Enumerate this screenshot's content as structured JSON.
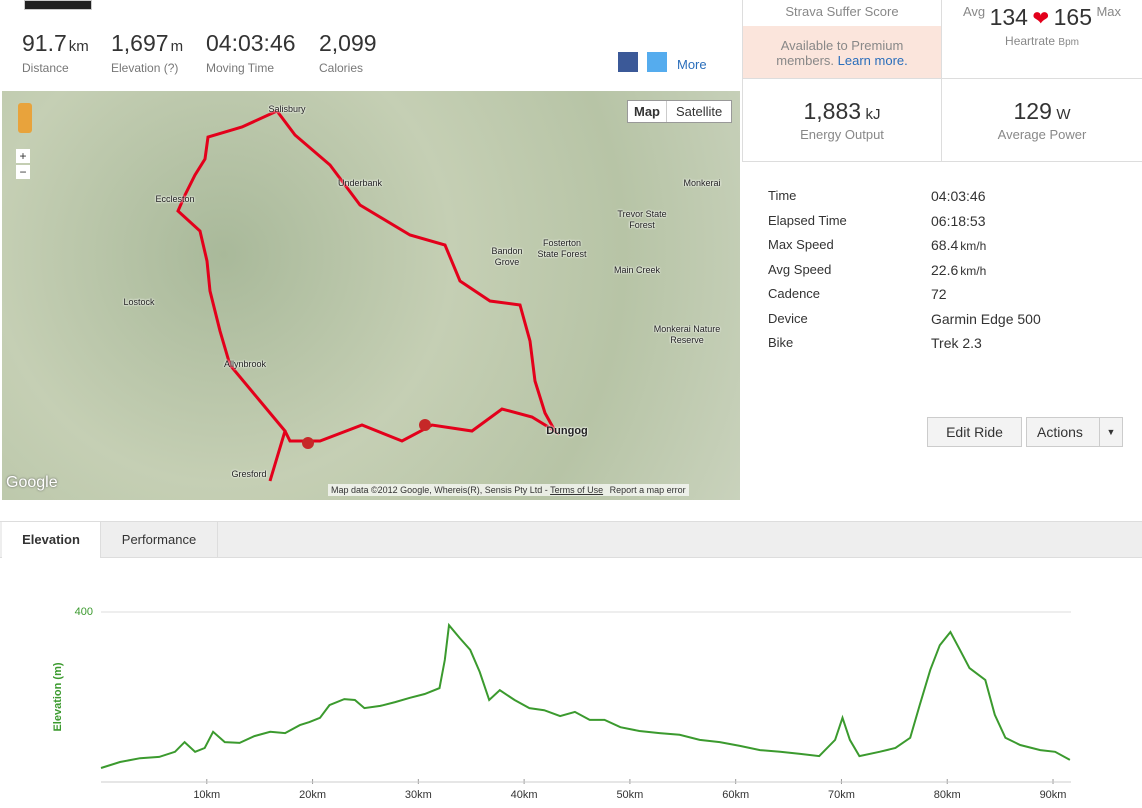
{
  "stats": [
    {
      "value": "91.7",
      "unit": "km",
      "label": "Distance"
    },
    {
      "value": "1,697",
      "unit": "m",
      "label": "Elevation (?)"
    },
    {
      "value": "04:03:46",
      "label": "Moving Time"
    },
    {
      "value": "2,099",
      "label": "Calories"
    }
  ],
  "share": {
    "more": "More"
  },
  "map": {
    "buttons": [
      "Map",
      "Satellite"
    ],
    "places": [
      "Salisbury",
      "Underbank",
      "Eccleston",
      "Lostock",
      "Allynbrook",
      "Gresford",
      "Dungog",
      "Bandon Grove",
      "Fosterton State Forest",
      "Trevor State Forest",
      "Monkerai",
      "Main Creek",
      "Monkerai Nature Reserve"
    ],
    "attribution": "Map data ©2012 Google, Whereis(R), Sensis Pty Ltd -",
    "terms": "Terms of Use",
    "report": "Report a map error",
    "logo": "Google"
  },
  "suffer": {
    "title": "Strava Suffer Score",
    "text": "Available to Premium members.",
    "link": "Learn more."
  },
  "heartrate": {
    "avg_label": "Avg",
    "avg": "134",
    "max": "165",
    "max_label": "Max",
    "label": "Heartrate",
    "unit": "Bpm"
  },
  "energy": {
    "value": "1,883",
    "unit": "kJ",
    "label": "Energy Output"
  },
  "power": {
    "value": "129",
    "unit": "W",
    "label": "Average Power"
  },
  "details": [
    {
      "label": "Time",
      "value": "04:03:46"
    },
    {
      "label": "Elapsed Time",
      "value": "06:18:53"
    },
    {
      "label": "Max Speed",
      "value": "68.4",
      "unit": "km/h"
    },
    {
      "label": "Avg Speed",
      "value": "22.6",
      "unit": "km/h"
    },
    {
      "label": "Cadence",
      "value": "72"
    },
    {
      "label": "Device",
      "value": "Garmin Edge 500"
    },
    {
      "label": "Bike",
      "value": "Trek 2.3"
    }
  ],
  "buttons": {
    "edit": "Edit Ride",
    "actions": "Actions"
  },
  "tabs": [
    "Elevation",
    "Performance"
  ],
  "chart_data": {
    "type": "line",
    "y_label": "Elevation (m)",
    "color": "#3b9a2e",
    "x": [
      0,
      1.8,
      3.7,
      5.5,
      7.0,
      7.9,
      8.9,
      9.8,
      10.6,
      11.7,
      13.1,
      14.5,
      16.0,
      17.4,
      18.8,
      19.7,
      20.7,
      21.6,
      23.0,
      24.0,
      24.9,
      26.4,
      27.8,
      29.2,
      30.6,
      32.0,
      32.5,
      32.9,
      33.9,
      34.9,
      35.8,
      36.7,
      37.7,
      39.1,
      40.5,
      41.9,
      43.4,
      44.8,
      46.2,
      47.6,
      49.1,
      50.9,
      52.8,
      54.7,
      56.6,
      58.5,
      60.4,
      62.3,
      64.2,
      66.1,
      67.9,
      69.4,
      70.1,
      70.8,
      71.7,
      73.6,
      75.1,
      76.5,
      77.4,
      78.4,
      79.3,
      80.3,
      81.2,
      82.1,
      83.6,
      84.5,
      85.5,
      86.9,
      88.8,
      90.2,
      91.6
    ],
    "values": [
      33,
      47,
      56,
      59,
      71,
      94,
      71,
      80,
      118,
      94,
      92,
      108,
      118,
      115,
      134,
      141,
      151,
      181,
      195,
      193,
      174,
      179,
      188,
      198,
      207,
      221,
      287,
      369,
      339,
      311,
      259,
      193,
      216,
      193,
      174,
      169,
      155,
      165,
      146,
      146,
      129,
      120,
      115,
      111,
      99,
      94,
      85,
      75,
      71,
      66,
      61,
      99,
      151,
      99,
      61,
      71,
      80,
      104,
      181,
      264,
      322,
      353,
      311,
      268,
      240,
      158,
      104,
      87,
      75,
      71,
      52
    ],
    "xlim": [
      0,
      91.7
    ],
    "ylim": [
      0,
      400
    ],
    "xticks": [
      {
        "value": 10,
        "label": "10km"
      },
      {
        "value": 20,
        "label": "20km"
      },
      {
        "value": 30,
        "label": "30km"
      },
      {
        "value": 40,
        "label": "40km"
      },
      {
        "value": 50,
        "label": "50km"
      },
      {
        "value": 60,
        "label": "60km"
      },
      {
        "value": 70,
        "label": "70km"
      },
      {
        "value": 80,
        "label": "80km"
      },
      {
        "value": 90,
        "label": "90km"
      }
    ],
    "yticks": [
      400
    ]
  }
}
